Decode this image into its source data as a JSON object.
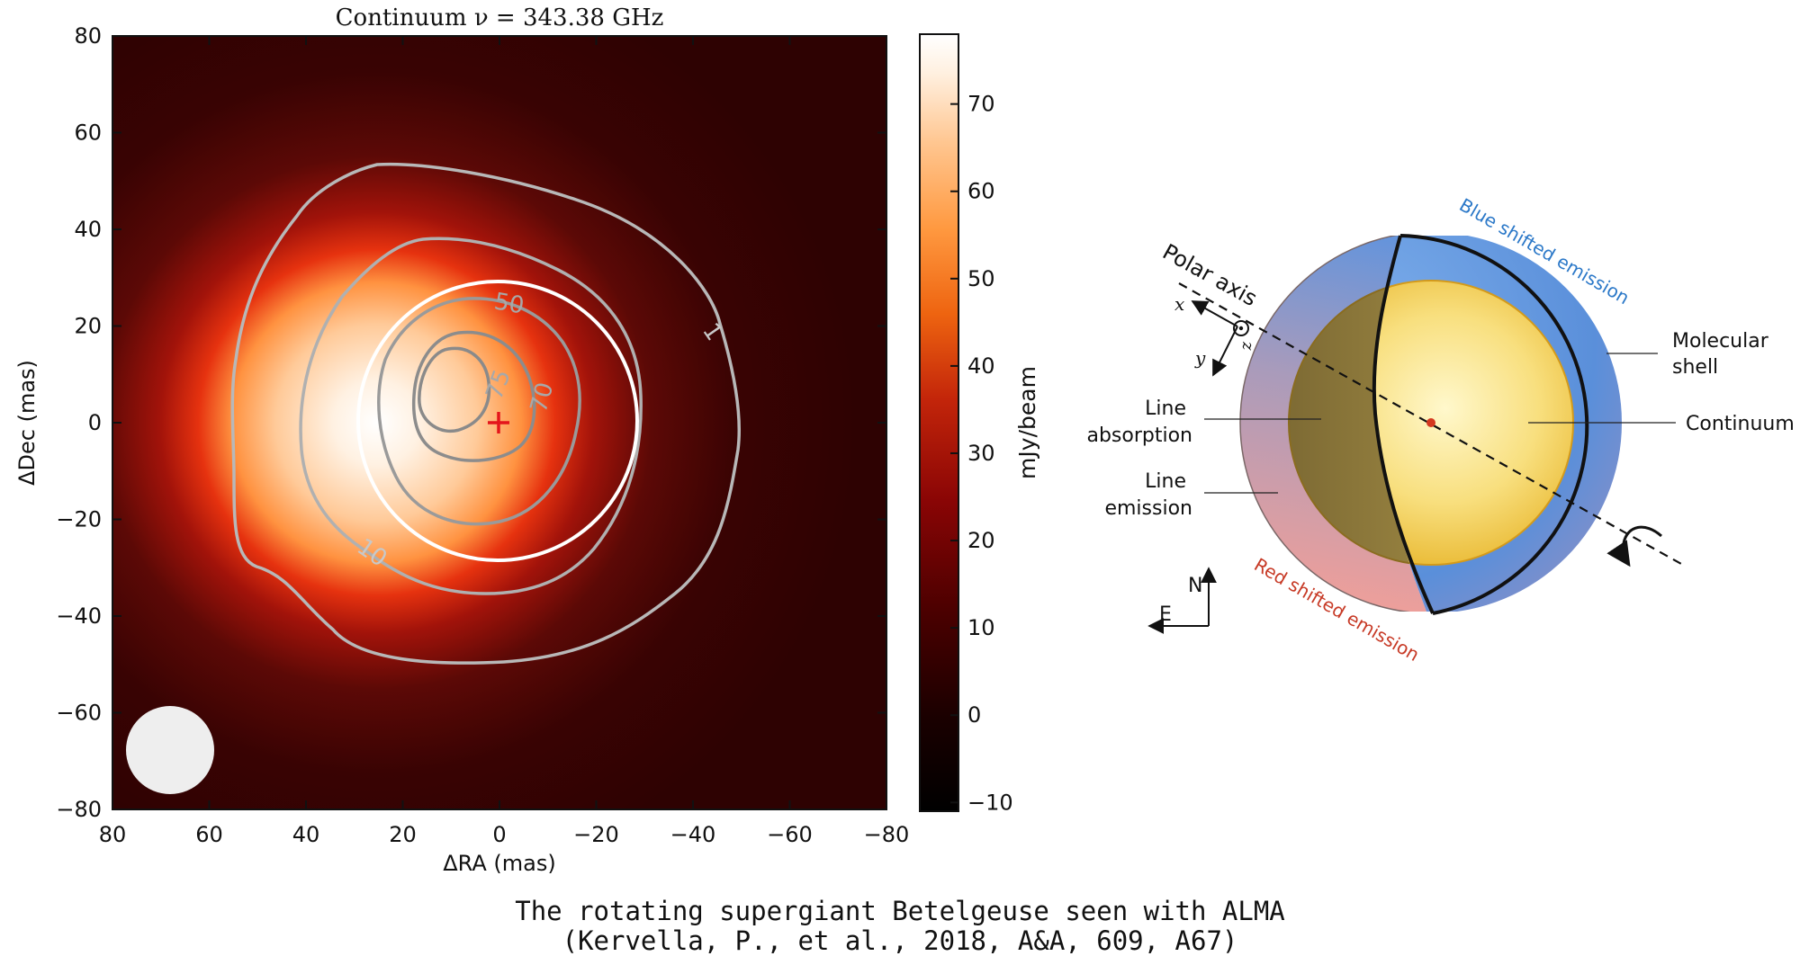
{
  "chart_data": {
    "type": "heatmap",
    "title": "Continuum ν = 343.38 GHz",
    "xlabel": "ΔRA (mas)",
    "ylabel": "ΔDec (mas)",
    "xlim": [
      80,
      -80
    ],
    "ylim": [
      -80,
      80
    ],
    "x_ticks": [
      80,
      60,
      40,
      20,
      0,
      -20,
      -40,
      -60,
      -80
    ],
    "x_tick_labels": [
      "80",
      "60",
      "40",
      "20",
      "0",
      "−20",
      "−40",
      "−60",
      "−80"
    ],
    "y_ticks": [
      80,
      60,
      40,
      20,
      0,
      -20,
      -40,
      -60,
      -80
    ],
    "y_tick_labels": [
      "80",
      "60",
      "40",
      "20",
      "0",
      "−20",
      "−40",
      "−60",
      "−80"
    ],
    "colorbar": {
      "label": "mJy/beam",
      "range": [
        -11,
        78
      ],
      "ticks": [
        70,
        60,
        50,
        40,
        30,
        20,
        10,
        0,
        -10
      ],
      "tick_labels": [
        "70",
        "60",
        "50",
        "40",
        "30",
        "20",
        "10",
        "0",
        "−10"
      ],
      "colormap": "gist_heat"
    },
    "peak_mjy_per_beam": 78,
    "source_center": {
      "x": 0,
      "y": 0,
      "marker": "+",
      "color": "#e4151b"
    },
    "peak_position": {
      "x": 8,
      "y": 5
    },
    "contours": [
      {
        "level": 1,
        "label": "1"
      },
      {
        "level": 10,
        "label": "10"
      },
      {
        "level": 50,
        "label": "50"
      },
      {
        "level": 70,
        "label": "70"
      },
      {
        "level": 75,
        "label": "75"
      }
    ],
    "photosphere_circle": {
      "center": [
        0,
        0
      ],
      "radius_mas": 29,
      "color": "#ffffff"
    },
    "beam_ellipse": {
      "center": [
        68,
        -68
      ],
      "radius_mas": 9,
      "color": "#eeeeee"
    }
  },
  "diagram": {
    "polar_axis_label": "Polar axis",
    "axis_x": "x",
    "axis_y": "y",
    "axis_z": "z",
    "blue_shift_label": "Blue shifted emission",
    "red_shift_label": "Red shifted emission",
    "molecular_shell_label": [
      "Molecular",
      "shell"
    ],
    "line_absorption_label": [
      "Line",
      "absorption"
    ],
    "continuum_label": "Continuum",
    "line_emission_label": [
      "Line",
      "emission"
    ],
    "north": "N",
    "east": "E",
    "colors": {
      "blue_shell": "#6c9ee0",
      "red_shell": "#e8a3a4",
      "continuum": "#f2cc5a",
      "absorption": "#8d7a3f",
      "blue_text": "#2b78c8",
      "red_text": "#c73a26"
    }
  },
  "caption": {
    "line1": "The rotating supergiant Betelgeuse seen with ALMA",
    "line2": "(Kervella, P., et al., 2018, A&A, 609, A67)"
  }
}
